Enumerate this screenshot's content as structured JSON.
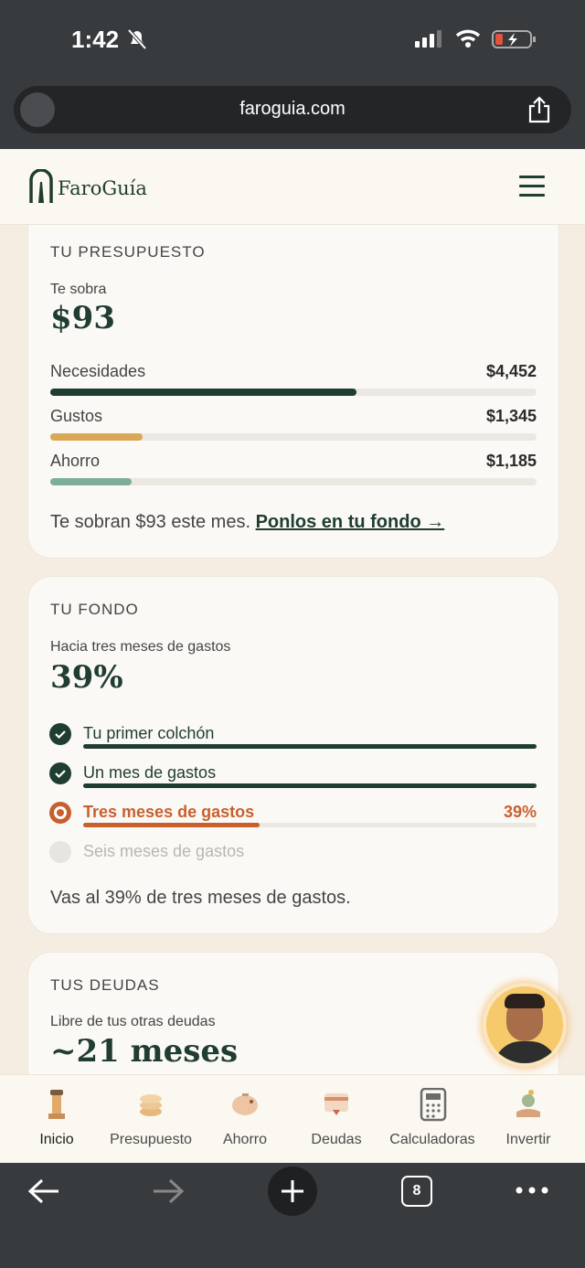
{
  "status_bar": {
    "time": "1:42"
  },
  "browser": {
    "url": "faroguia.com",
    "tab_count": "8"
  },
  "header": {
    "brand": "FaroGuía"
  },
  "budget": {
    "title": "TU PRESUPUESTO",
    "leftover_label": "Te sobra",
    "leftover": {
      "value": 93,
      "label": "$93"
    },
    "items": [
      {
        "name": "Necesidades",
        "value": 4452,
        "label": "$4,452",
        "color": "#1f3d30"
      },
      {
        "name": "Gustos",
        "value": 1345,
        "label": "$1,345",
        "color": "#d9a857"
      },
      {
        "name": "Ahorro",
        "value": 1185,
        "label": "$1,185",
        "color": "#7fae98"
      }
    ],
    "note": "Te sobran $93 este mes.",
    "link": "Ponlos en tu fondo →"
  },
  "fund": {
    "title": "TU FONDO",
    "goal_label": "Hacia tres meses de gastos",
    "progress": {
      "value": 39,
      "label": "39%"
    },
    "milestones": [
      {
        "name": "Tu primer colchón",
        "state": "done"
      },
      {
        "name": "Un mes de gastos",
        "state": "done"
      },
      {
        "name": "Tres meses de gastos",
        "state": "current",
        "value": 39,
        "label": "39%"
      },
      {
        "name": "Seis meses de gastos",
        "state": "pending"
      }
    ],
    "note": "Vas al 39% de tres meses de gastos."
  },
  "debts": {
    "title": "TUS DEUDAS",
    "goal_label": "Libre de tus otras deudas",
    "estimate": "~21 meses"
  },
  "nav": {
    "items": [
      "Inicio",
      "Presupuesto",
      "Ahorro",
      "Deudas",
      "Calculadoras",
      "Invertir"
    ],
    "active": 0
  }
}
